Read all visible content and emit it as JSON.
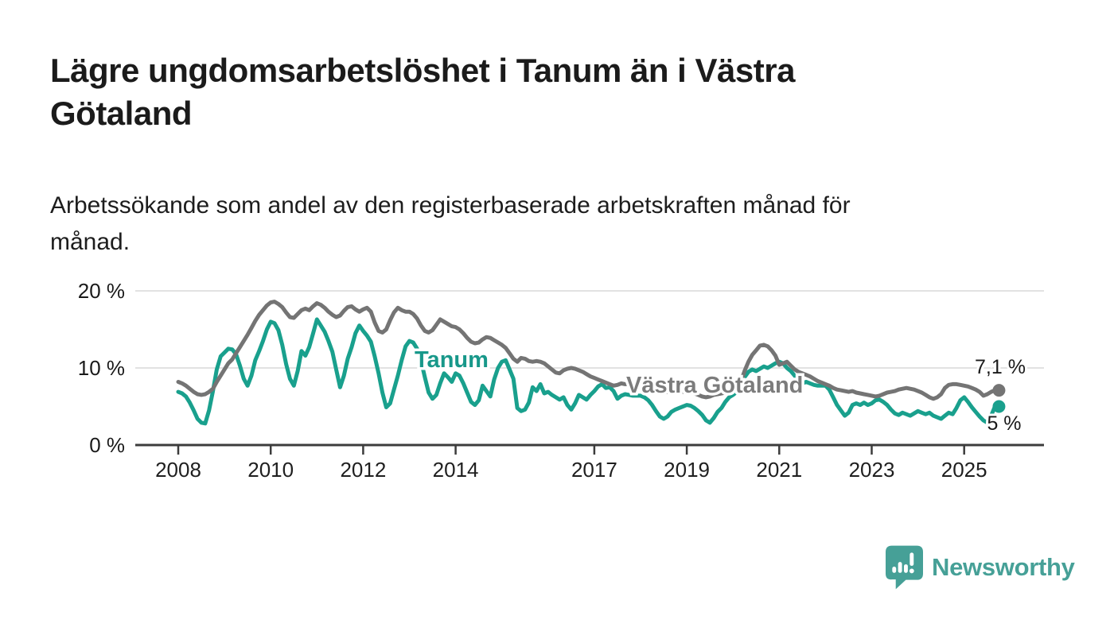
{
  "header": {
    "title_lines": [
      "Lägre ungdomsarbetslöshet i Tanum än i Västra",
      "Götaland"
    ],
    "subtitle_lines": [
      "Arbetssökande som andel av den registerbaserade arbetskraften månad för",
      "månad."
    ]
  },
  "footer": {
    "brand": "Newsworthy",
    "brand_color": "#46a097",
    "logo_icon": "speech-bubble-bar-chart-icon"
  },
  "chart_data": {
    "type": "line",
    "title": "Lägre ungdomsarbetslöshet i Tanum än i Västra Götaland",
    "subtitle": "Arbetssökande som andel av den registerbaserade arbetskraften månad för månad.",
    "unit": "%",
    "frequency": "monthly",
    "x_start": "2008-01",
    "x_end": "2025-09",
    "ylim": [
      0,
      21.5
    ],
    "grid": "horizontal",
    "legend_position": "inline-labels",
    "y_ticks": [
      {
        "value": 0,
        "label": "0 %"
      },
      {
        "value": 10,
        "label": "10 %"
      },
      {
        "value": 20,
        "label": "20 %"
      }
    ],
    "x_ticks": [
      {
        "year": 2008,
        "label": "2008"
      },
      {
        "year": 2010,
        "label": "2010"
      },
      {
        "year": 2012,
        "label": "2012"
      },
      {
        "year": 2014,
        "label": "2014"
      },
      {
        "year": 2017,
        "label": "2017"
      },
      {
        "year": 2019,
        "label": "2019"
      },
      {
        "year": 2021,
        "label": "2021"
      },
      {
        "year": 2023,
        "label": "2023"
      },
      {
        "year": 2025,
        "label": "2025"
      }
    ],
    "series": [
      {
        "name": "Tanum",
        "slug": "tanum",
        "color": "#19a08d",
        "label_color": "#18988a",
        "end_value": 5.0,
        "end_label": "5 %",
        "values": [
          6.9,
          6.7,
          6.3,
          5.5,
          4.5,
          3.4,
          2.9,
          2.8,
          4.5,
          7.0,
          9.8,
          11.5,
          12.0,
          12.5,
          12.4,
          11.8,
          10.3,
          8.6,
          7.7,
          9.0,
          11.0,
          12.2,
          13.5,
          15.0,
          16.0,
          15.8,
          14.9,
          13.0,
          10.5,
          8.6,
          7.7,
          9.6,
          12.2,
          11.6,
          12.7,
          14.5,
          16.3,
          15.5,
          14.7,
          13.5,
          12.1,
          9.8,
          7.5,
          9.0,
          11.2,
          12.7,
          14.5,
          15.5,
          14.8,
          14.2,
          13.4,
          11.5,
          9.3,
          6.8,
          4.9,
          5.4,
          7.2,
          9.0,
          11.0,
          12.8,
          13.5,
          13.3,
          12.5,
          11.0,
          8.8,
          6.8,
          6.0,
          6.5,
          8.0,
          9.3,
          8.8,
          8.2,
          9.3,
          9.0,
          8.0,
          6.8,
          5.6,
          5.2,
          5.8,
          7.7,
          7.0,
          6.3,
          8.5,
          10.0,
          10.8,
          11.0,
          9.8,
          8.6,
          4.8,
          4.4,
          4.6,
          5.5,
          7.5,
          7.0,
          7.9,
          6.7,
          6.9,
          6.5,
          6.2,
          5.9,
          6.2,
          5.2,
          4.6,
          5.4,
          6.5,
          6.2,
          5.9,
          6.5,
          7.0,
          7.6,
          7.9,
          7.4,
          7.5,
          7.0,
          6.0,
          6.4,
          6.6,
          6.5,
          6.4,
          6.4,
          6.4,
          6.2,
          5.8,
          5.2,
          4.4,
          3.7,
          3.4,
          3.7,
          4.3,
          4.6,
          4.8,
          5.0,
          5.2,
          5.1,
          4.8,
          4.4,
          3.9,
          3.2,
          2.9,
          3.5,
          4.3,
          4.8,
          5.6,
          6.2,
          6.5,
          6.9,
          7.5,
          8.8,
          9.5,
          9.8,
          9.6,
          9.9,
          10.2,
          10.0,
          10.3,
          10.6,
          10.8,
          10.6,
          10.0,
          9.6,
          9.0,
          8.4,
          8.0,
          8.2,
          8.0,
          7.8,
          7.7,
          7.7,
          7.7,
          7.2,
          6.2,
          5.2,
          4.5,
          3.8,
          4.2,
          5.2,
          5.4,
          5.2,
          5.5,
          5.2,
          5.4,
          5.8,
          5.9,
          5.6,
          5.2,
          4.6,
          4.1,
          3.9,
          4.2,
          4.0,
          3.8,
          4.1,
          4.4,
          4.2,
          4.0,
          4.2,
          3.8,
          3.6,
          3.4,
          3.8,
          4.2,
          4.0,
          4.8,
          5.8,
          6.2,
          5.6,
          4.9,
          4.3,
          3.7,
          3.2,
          2.9,
          3.8,
          5.0
        ]
      },
      {
        "name": "Västra Götaland",
        "slug": "vastra-gotaland",
        "color": "#747474",
        "label_color": "#7c7c7c",
        "end_value": 7.1,
        "end_label": "7,1 %",
        "values": [
          8.2,
          8.0,
          7.7,
          7.3,
          6.9,
          6.6,
          6.5,
          6.6,
          6.9,
          7.3,
          8.2,
          9.0,
          9.8,
          10.6,
          11.1,
          11.9,
          12.7,
          13.5,
          14.3,
          15.2,
          16.1,
          16.9,
          17.5,
          18.1,
          18.5,
          18.6,
          18.3,
          17.9,
          17.2,
          16.6,
          16.5,
          17.0,
          17.5,
          17.7,
          17.5,
          18.0,
          18.4,
          18.2,
          17.8,
          17.3,
          16.9,
          16.6,
          16.8,
          17.4,
          17.9,
          18.0,
          17.6,
          17.3,
          17.6,
          17.8,
          17.3,
          15.9,
          14.8,
          14.6,
          15.0,
          16.2,
          17.2,
          17.8,
          17.5,
          17.3,
          17.3,
          17.0,
          16.4,
          15.5,
          14.8,
          14.6,
          14.9,
          15.6,
          16.3,
          16.0,
          15.7,
          15.4,
          15.3,
          15.0,
          14.5,
          13.9,
          13.4,
          13.2,
          13.3,
          13.7,
          14.0,
          13.9,
          13.6,
          13.3,
          13.0,
          12.6,
          11.9,
          11.2,
          10.8,
          11.3,
          11.2,
          10.9,
          10.8,
          10.9,
          10.8,
          10.6,
          10.2,
          9.8,
          9.4,
          9.3,
          9.7,
          9.9,
          10.0,
          9.9,
          9.7,
          9.5,
          9.2,
          8.9,
          8.7,
          8.5,
          8.3,
          8.1,
          7.9,
          7.7,
          7.8,
          8.0,
          7.9,
          7.9,
          7.8,
          7.8,
          7.8,
          7.7,
          7.5,
          7.2,
          7.0,
          6.8,
          6.8,
          6.9,
          7.0,
          6.9,
          6.9,
          6.9,
          7.0,
          6.9,
          6.7,
          6.5,
          6.3,
          6.2,
          6.3,
          6.5,
          6.6,
          6.7,
          6.8,
          7.0,
          7.2,
          7.5,
          8.2,
          9.6,
          10.8,
          11.7,
          12.3,
          12.9,
          13.0,
          12.8,
          12.3,
          11.6,
          10.4,
          10.6,
          10.8,
          10.3,
          9.8,
          9.5,
          9.3,
          9.1,
          8.9,
          8.6,
          8.3,
          8.1,
          7.9,
          7.7,
          7.4,
          7.2,
          7.1,
          7.0,
          6.9,
          7.0,
          6.8,
          6.7,
          6.6,
          6.5,
          6.4,
          6.3,
          6.4,
          6.6,
          6.8,
          6.9,
          7.0,
          7.2,
          7.3,
          7.4,
          7.3,
          7.2,
          7.0,
          6.8,
          6.5,
          6.2,
          6.0,
          6.2,
          6.6,
          7.4,
          7.8,
          7.9,
          7.9,
          7.8,
          7.7,
          7.6,
          7.4,
          7.2,
          6.9,
          6.4,
          6.6,
          6.9,
          7.1
        ]
      }
    ]
  }
}
